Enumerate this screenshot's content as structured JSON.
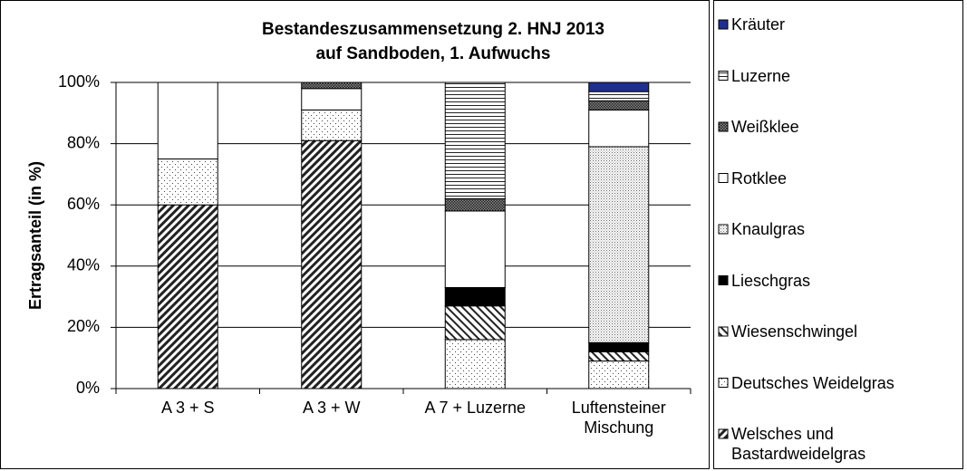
{
  "chart_data": {
    "type": "stacked_bar",
    "title": [
      "Bestandeszusammensetzung 2. HNJ 2013",
      "auf Sandboden, 1. Aufwuchs"
    ],
    "y_label": "Ertragsanteil (in %)",
    "categories": [
      "A 3 + S",
      "A 3 + W",
      "A 7 + Luzerne",
      "Luftensteiner Mischung"
    ],
    "series": [
      {
        "name": "Welsches und Bastardweidelgras",
        "color": "#000000",
        "pattern": "diag",
        "values": [
          60,
          81,
          0,
          0
        ]
      },
      {
        "name": "Deutsches Weidelgras",
        "color": "#000000",
        "pattern": "dots",
        "values": [
          15,
          10,
          16,
          9
        ]
      },
      {
        "name": "Wiesenschwingel",
        "color": "#000000",
        "pattern": "back",
        "values": [
          0,
          0,
          11,
          3
        ]
      },
      {
        "name": "Lieschgras",
        "color": "#000000",
        "pattern": "solid",
        "values": [
          0,
          0,
          6,
          3
        ]
      },
      {
        "name": "Knaulgras",
        "color": "#000000",
        "pattern": "fine",
        "values": [
          0,
          0,
          0,
          64
        ]
      },
      {
        "name": "Rotklee",
        "color": "#ffffff",
        "pattern": "solid",
        "values": [
          25,
          7,
          25,
          12
        ]
      },
      {
        "name": "Weißklee",
        "color": "#000000",
        "pattern": "check",
        "values": [
          0,
          2,
          4,
          3
        ]
      },
      {
        "name": "Luzerne",
        "color": "#000000",
        "pattern": "hlines",
        "values": [
          0,
          0,
          38,
          3
        ]
      },
      {
        "name": "Kräuter",
        "color": "#1f2f8f",
        "pattern": "solid",
        "values": [
          0,
          0,
          0,
          3
        ]
      }
    ],
    "ylim": [
      0,
      100
    ],
    "yticks": [
      {
        "value": 0,
        "label": "0%"
      },
      {
        "value": 20,
        "label": "20%"
      },
      {
        "value": 40,
        "label": "40%"
      },
      {
        "value": 60,
        "label": "60%"
      },
      {
        "value": 80,
        "label": "80%"
      },
      {
        "value": 100,
        "label": "100%"
      }
    ],
    "grid": true,
    "legend": "right"
  }
}
